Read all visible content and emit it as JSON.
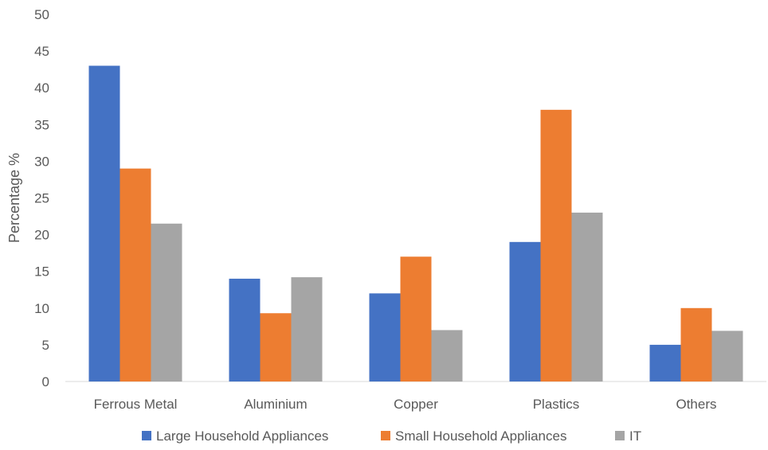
{
  "chart_data": {
    "type": "bar",
    "title": "",
    "xlabel": "",
    "ylabel": "Percentage %",
    "ylim": [
      0,
      50
    ],
    "yticks": [
      0,
      5,
      10,
      15,
      20,
      25,
      30,
      35,
      40,
      45,
      50
    ],
    "grid": false,
    "legend_position": "bottom",
    "categories": [
      "Ferrous Metal",
      "Aluminium",
      "Copper",
      "Plastics",
      "Others"
    ],
    "series": [
      {
        "name": "Large Household Appliances",
        "color": "#4472C4",
        "values": [
          43,
          14,
          12,
          19,
          5
        ]
      },
      {
        "name": "Small Household Appliances",
        "color": "#ED7D31",
        "values": [
          29,
          9.3,
          17,
          37,
          10
        ]
      },
      {
        "name": "IT",
        "color": "#A5A5A5",
        "values": [
          21.5,
          14.2,
          7,
          23,
          6.9
        ]
      }
    ]
  }
}
